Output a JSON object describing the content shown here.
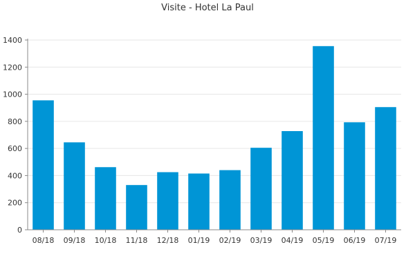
{
  "chart_data": {
    "type": "bar",
    "title": "Visite - Hotel La Paul",
    "xlabel": "",
    "ylabel": "",
    "categories": [
      "08/18",
      "09/18",
      "10/18",
      "11/18",
      "12/18",
      "01/19",
      "02/19",
      "03/19",
      "04/19",
      "05/19",
      "06/19",
      "07/19"
    ],
    "values": [
      955,
      645,
      462,
      330,
      425,
      415,
      440,
      605,
      728,
      1355,
      793,
      905
    ],
    "ylim": [
      0,
      1400
    ],
    "yticks": [
      0,
      200,
      400,
      600,
      800,
      1000,
      1200,
      1400
    ],
    "grid": true,
    "legend": "none",
    "colors": {
      "bar": "#0095d6",
      "grid": "#e6e6e6",
      "axis": "#888888",
      "text": "#333333"
    }
  }
}
